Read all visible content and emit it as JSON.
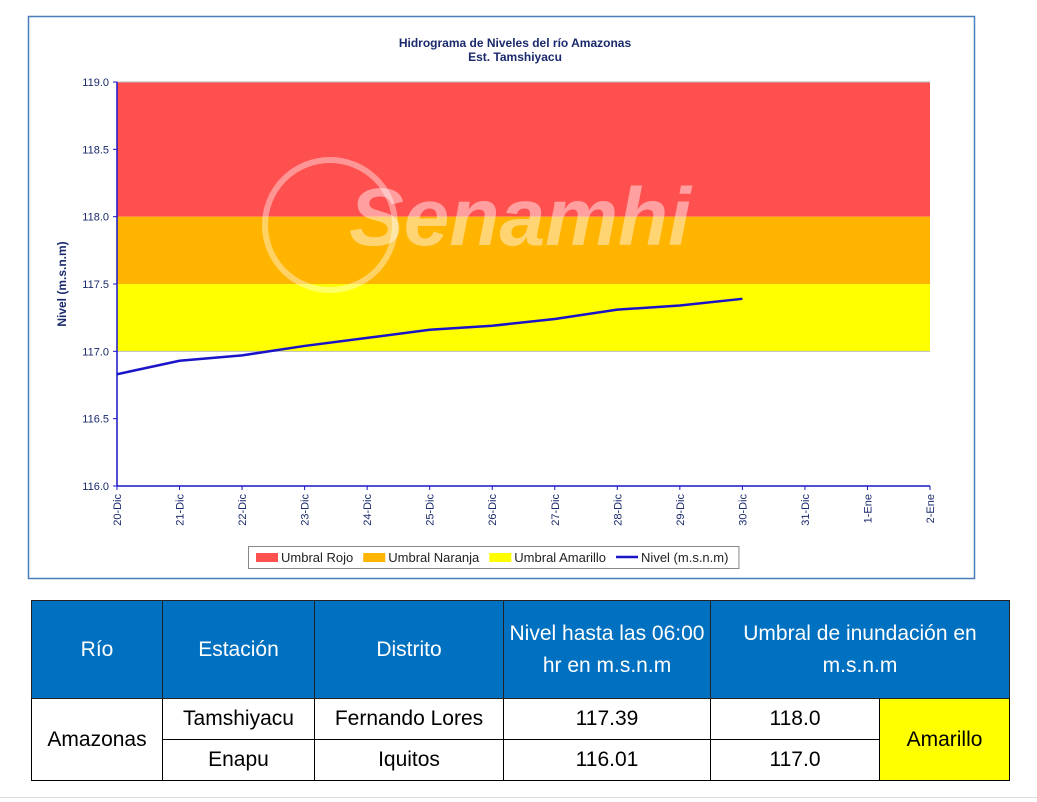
{
  "chart_data": {
    "type": "line",
    "title": [
      "Hidrograma de Niveles del río Amazonas",
      "Est. Tamshiyacu"
    ],
    "watermark": "Senamhi",
    "y_label": "Nivel (m.s.n.m)",
    "categories": [
      "20-Dic",
      "21-Dic",
      "22-Dic",
      "23-Dic",
      "24-Dic",
      "25-Dic",
      "26-Dic",
      "27-Dic",
      "28-Dic",
      "29-Dic",
      "30-Dic",
      "31-Dic",
      "1-Ene",
      "2-Ene"
    ],
    "thresholds": [
      {
        "name": "Umbral Rojo",
        "color": "#ff5050",
        "range": [
          118,
          119
        ]
      },
      {
        "name": "Umbral Naranja",
        "color": "#ffb400",
        "range": [
          117.5,
          118
        ]
      },
      {
        "name": "Umbral Amarillo",
        "color": "#ffff00",
        "range": [
          117,
          117.5
        ]
      }
    ],
    "series": [
      {
        "name": "Nivel (m.s.n.m)",
        "color": "#1a14c8",
        "values": [
          116.83,
          116.93,
          116.97,
          117.04,
          117.1,
          117.16,
          117.19,
          117.24,
          117.31,
          117.34,
          117.39,
          null,
          null,
          null
        ]
      }
    ],
    "ylim": [
      116,
      119
    ],
    "yticks": [
      {
        "value": 116,
        "label": "116.0"
      },
      116.5,
      {
        "value": 117,
        "label": "117.0"
      },
      117.5,
      {
        "value": 118,
        "label": "118.0"
      },
      118.5,
      {
        "value": 119,
        "label": "119.0"
      }
    ],
    "legend": "bottom"
  },
  "table": {
    "headers": [
      "Río",
      "Estación",
      "Distrito",
      "Nivel hasta las 06:00 hr en m.s.n.m",
      "Umbral de inundación en m.s.n.m"
    ],
    "river": "Amazonas",
    "rows": [
      [
        "Tamshiyacu",
        "Fernando Lores",
        "117.39",
        "118.0"
      ],
      [
        "Enapu",
        "Iquitos",
        "116.01",
        "117.0"
      ]
    ],
    "alert": "Amarillo"
  }
}
